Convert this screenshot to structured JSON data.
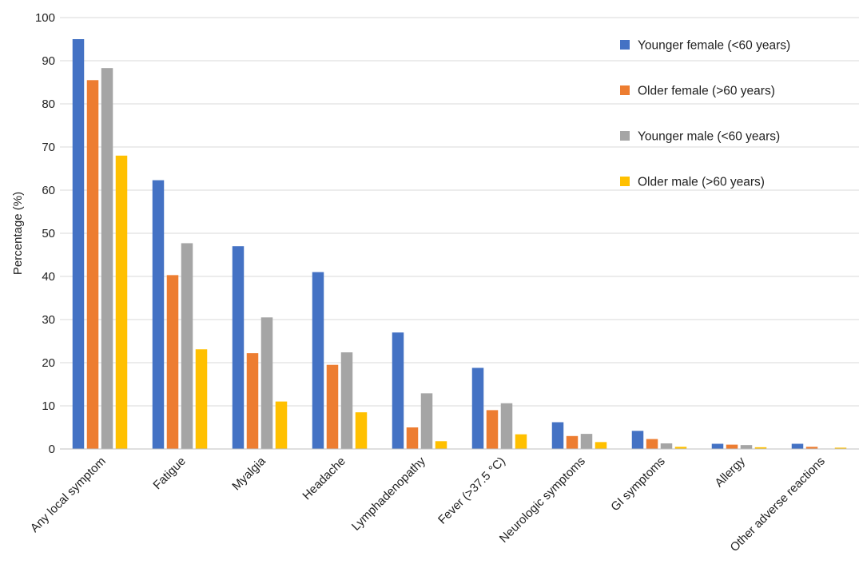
{
  "chart_data": {
    "type": "bar",
    "title": "",
    "xlabel": "",
    "ylabel": "Percentage (%)",
    "ylim": [
      0,
      100
    ],
    "yticks": [
      0,
      10,
      20,
      30,
      40,
      50,
      60,
      70,
      80,
      90,
      100
    ],
    "grid": true,
    "legend_position": "top-right",
    "categories": [
      "Any local symptom",
      "Fatigue",
      "Myalgia",
      "Headache",
      "Lymphadenopathy",
      "Fever (>37.5 °C)",
      "Neurologic symptoms",
      "GI symptoms",
      "Allergy",
      "Other adverse reactions"
    ],
    "series": [
      {
        "name": "Younger female (<60 years)",
        "color": "#4472C4",
        "values": [
          95.0,
          62.3,
          47.0,
          41.0,
          27.0,
          18.8,
          6.2,
          4.2,
          1.2,
          1.2
        ]
      },
      {
        "name": "Older female (>60 years)",
        "color": "#ED7D31",
        "values": [
          85.5,
          40.3,
          22.2,
          19.5,
          5.0,
          9.0,
          3.0,
          2.3,
          1.0,
          0.5
        ]
      },
      {
        "name": "Younger male (<60 years)",
        "color": "#A5A5A5",
        "values": [
          88.3,
          47.7,
          30.5,
          22.4,
          12.9,
          10.6,
          3.5,
          1.3,
          0.9,
          0.1
        ]
      },
      {
        "name": "Older male (>60 years)",
        "color": "#FFC000",
        "values": [
          68.0,
          23.1,
          11.0,
          8.5,
          1.8,
          3.4,
          1.6,
          0.5,
          0.4,
          0.3
        ]
      }
    ]
  }
}
